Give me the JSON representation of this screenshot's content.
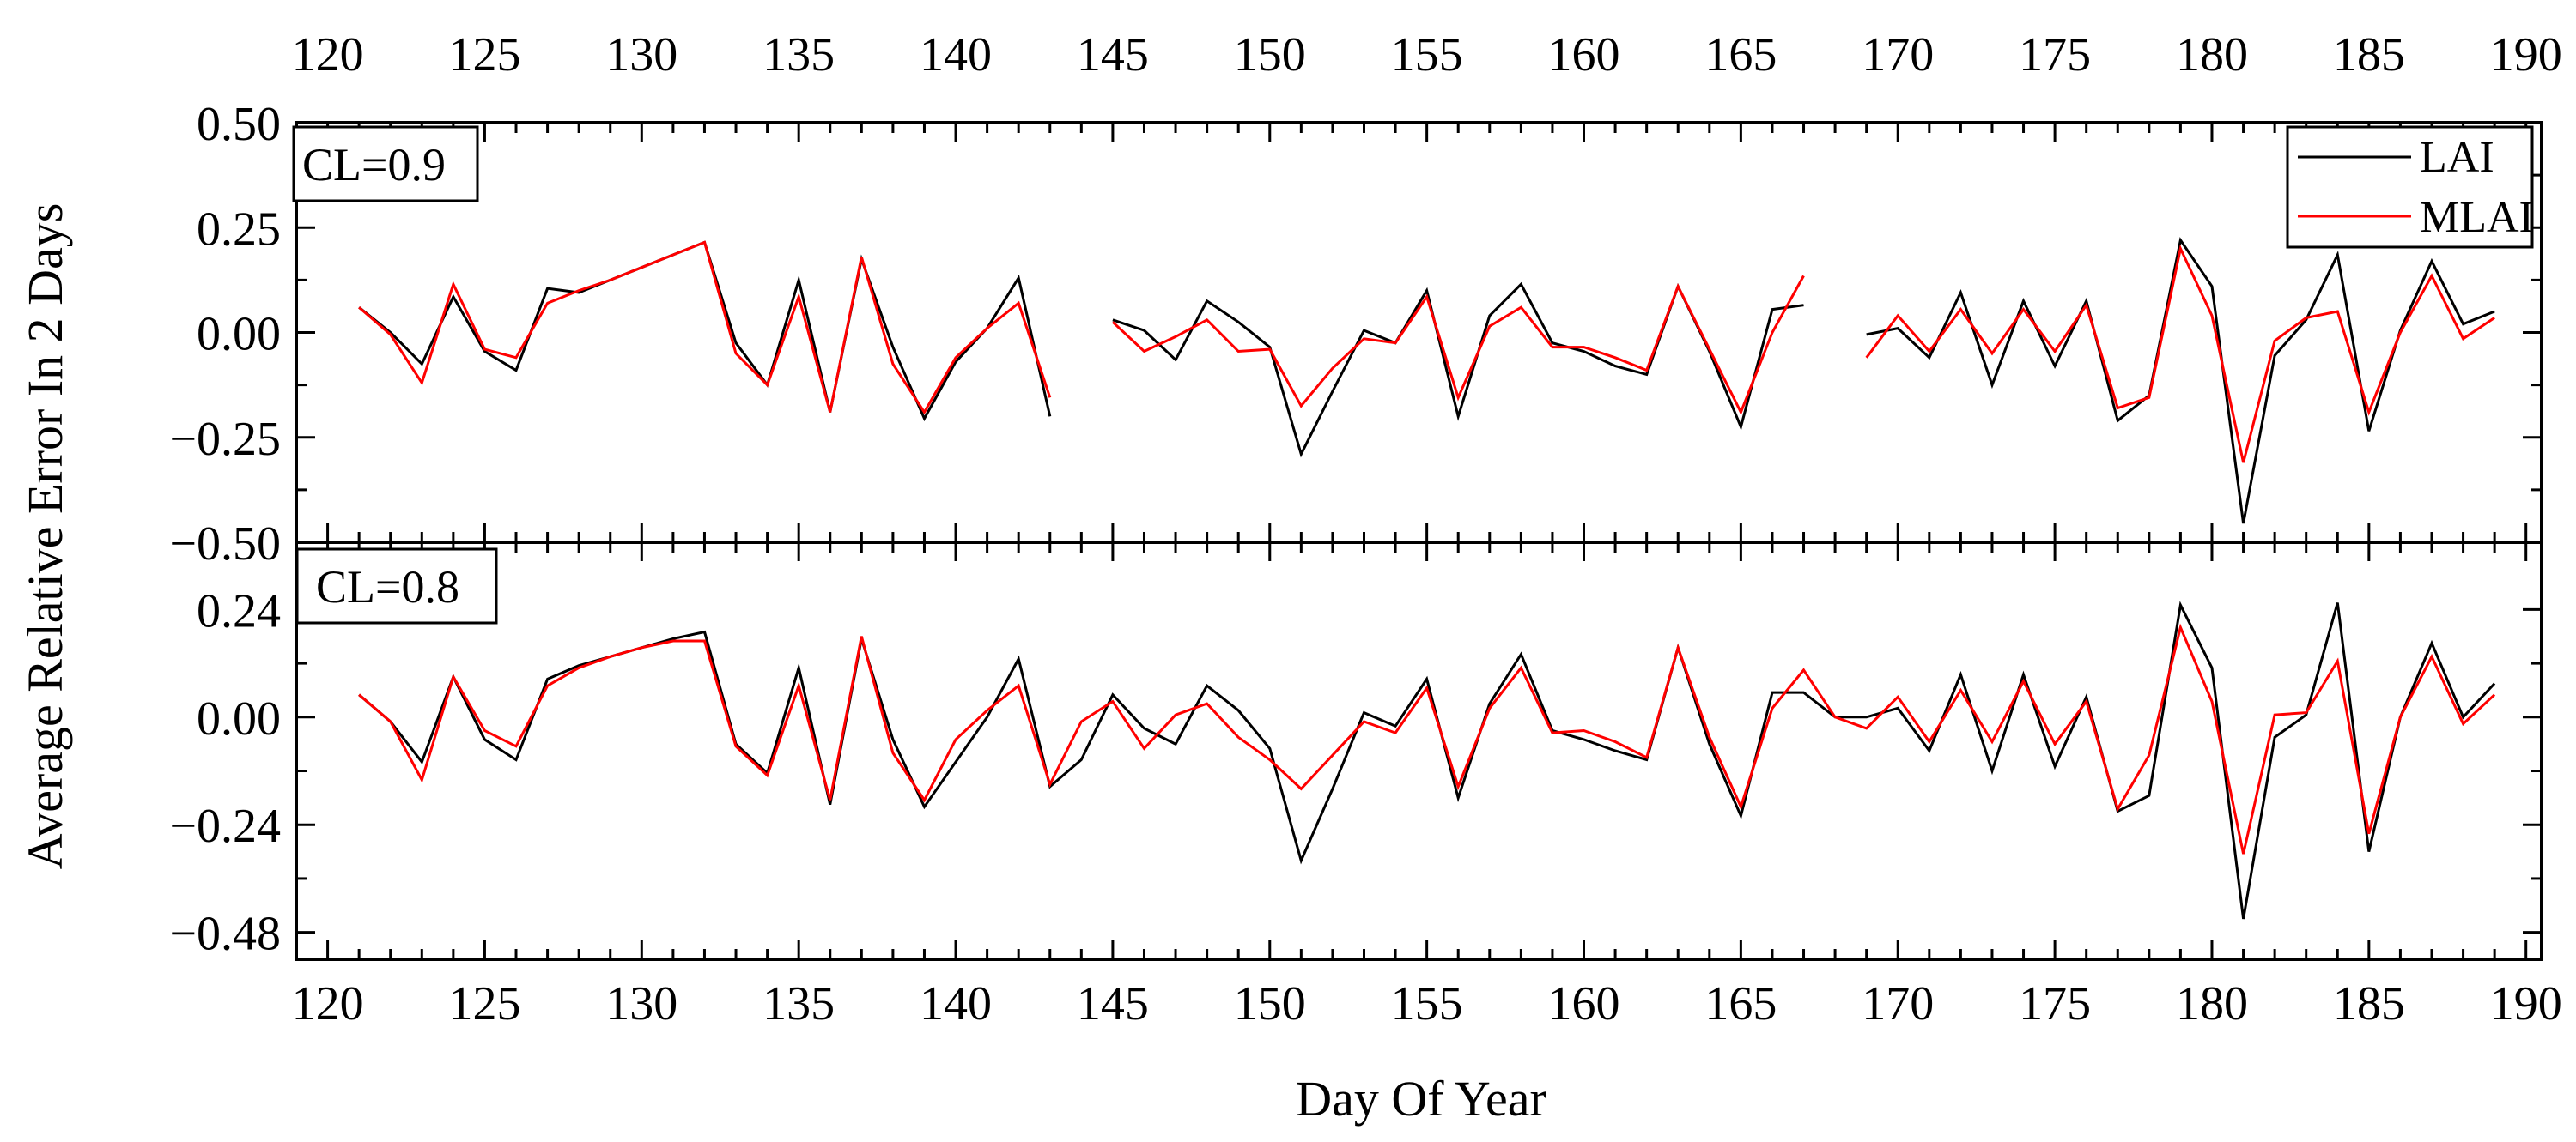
{
  "colors": {
    "LAI": "#000000",
    "MLAI": "#ff0000",
    "frame": "#000000",
    "background": "#ffffff"
  },
  "chart_data": {
    "type": "line",
    "xlabel": "Day Of Year",
    "ylabel": "Average Relative Error In 2 Days",
    "xlim": [
      119,
      190.5
    ],
    "xticks": [
      120,
      125,
      130,
      135,
      140,
      145,
      150,
      155,
      160,
      165,
      170,
      175,
      180,
      185,
      190
    ],
    "legend": {
      "position": "top-right",
      "panel": 0,
      "entries": [
        "LAI",
        "MLAI"
      ]
    },
    "grid": false,
    "panels": [
      {
        "label": "CL=0.9",
        "ylim": [
          -0.5,
          0.5
        ],
        "yticks": [
          0.5,
          0.25,
          0.0,
          -0.25,
          -0.5
        ],
        "ytick_labels": [
          "0.50",
          "0.25",
          "0.00",
          "−0.25",
          "−0.50"
        ],
        "series": [
          {
            "name": "LAI",
            "segments": [
              {
                "x": [
                  121,
                  122,
                  123,
                  124,
                  125,
                  126,
                  127,
                  128,
                  129,
                  130,
                  131,
                  132,
                  133,
                  134,
                  135,
                  136,
                  137,
                  138,
                  139,
                  140,
                  141,
                  142,
                  143
                ],
                "y": [
                  0.06,
                  0.0,
                  -0.075,
                  0.085,
                  -0.045,
                  -0.09,
                  0.105,
                  0.095,
                  0.125,
                  0.155,
                  0.185,
                  0.215,
                  -0.025,
                  -0.125,
                  0.125,
                  -0.19,
                  0.175,
                  -0.035,
                  -0.205,
                  -0.07,
                  0.01,
                  0.13,
                  -0.2
                ]
              },
              {
                "x": [
                  145,
                  146,
                  147,
                  148,
                  149,
                  150,
                  151,
                  152,
                  153,
                  154,
                  155,
                  156,
                  157,
                  158,
                  159,
                  160,
                  161,
                  162,
                  163,
                  164,
                  165,
                  166,
                  167
                ],
                "y": [
                  0.03,
                  0.005,
                  -0.065,
                  0.075,
                  0.025,
                  -0.035,
                  -0.29,
                  -0.14,
                  0.005,
                  -0.025,
                  0.1,
                  -0.2,
                  0.04,
                  0.115,
                  -0.025,
                  -0.045,
                  -0.08,
                  -0.1,
                  0.11,
                  -0.045,
                  -0.225,
                  0.055,
                  0.065
                ]
              },
              {
                "x": [
                  169,
                  170,
                  171,
                  172,
                  173,
                  174,
                  175,
                  176,
                  177,
                  178,
                  179,
                  180,
                  181,
                  182,
                  183,
                  184,
                  185,
                  186,
                  187,
                  188,
                  189
                ],
                "y": [
                  -0.005,
                  0.01,
                  -0.06,
                  0.095,
                  -0.125,
                  0.075,
                  -0.08,
                  0.075,
                  -0.21,
                  -0.15,
                  0.22,
                  0.11,
                  -0.455,
                  -0.055,
                  0.03,
                  0.185,
                  -0.235,
                  0.005,
                  0.17,
                  0.02,
                  0.05
                ]
              }
            ]
          },
          {
            "name": "MLAI",
            "segments": [
              {
                "x": [
                  121,
                  122,
                  123,
                  124,
                  125,
                  126,
                  127,
                  128,
                  129,
                  130,
                  131,
                  132,
                  133,
                  134,
                  135,
                  136,
                  137,
                  138,
                  139,
                  140,
                  141,
                  142,
                  143
                ],
                "y": [
                  0.06,
                  -0.005,
                  -0.12,
                  0.115,
                  -0.04,
                  -0.06,
                  0.07,
                  0.1,
                  0.125,
                  0.155,
                  0.185,
                  0.215,
                  -0.05,
                  -0.125,
                  0.085,
                  -0.19,
                  0.18,
                  -0.075,
                  -0.19,
                  -0.06,
                  0.01,
                  0.07,
                  -0.155
                ]
              },
              {
                "x": [
                  145,
                  146,
                  147,
                  148,
                  149,
                  150,
                  151,
                  152,
                  153,
                  154,
                  155,
                  156,
                  157,
                  158,
                  159,
                  160,
                  161,
                  162,
                  163,
                  164,
                  165,
                  166,
                  167
                ],
                "y": [
                  0.025,
                  -0.045,
                  -0.01,
                  0.03,
                  -0.045,
                  -0.04,
                  -0.175,
                  -0.085,
                  -0.015,
                  -0.025,
                  0.085,
                  -0.155,
                  0.015,
                  0.06,
                  -0.035,
                  -0.035,
                  -0.06,
                  -0.09,
                  0.11,
                  -0.04,
                  -0.19,
                  0.0,
                  0.135
                ]
              },
              {
                "x": [
                  169,
                  170,
                  171,
                  172,
                  173,
                  174,
                  175,
                  176,
                  177,
                  178,
                  179,
                  180,
                  181,
                  182,
                  183,
                  184,
                  185,
                  186,
                  187,
                  188,
                  189
                ],
                "y": [
                  -0.06,
                  0.04,
                  -0.045,
                  0.055,
                  -0.05,
                  0.055,
                  -0.045,
                  0.065,
                  -0.18,
                  -0.155,
                  0.2,
                  0.04,
                  -0.31,
                  -0.02,
                  0.035,
                  0.05,
                  -0.19,
                  0.0,
                  0.135,
                  -0.015,
                  0.035
                ]
              }
            ]
          }
        ]
      },
      {
        "label": "CL=0.8",
        "ylim": [
          -0.54,
          0.39
        ],
        "yticks": [
          0.24,
          0.0,
          -0.24,
          -0.48
        ],
        "ytick_labels": [
          "0.24",
          "0.00",
          "−0.24",
          "−0.48"
        ],
        "series": [
          {
            "name": "LAI",
            "segments": [
              {
                "x": [
                  121,
                  122,
                  123,
                  124,
                  125,
                  126,
                  127,
                  128,
                  129,
                  130,
                  131,
                  132,
                  133,
                  134,
                  135,
                  136,
                  137,
                  138,
                  139,
                  140,
                  141,
                  142,
                  143,
                  144,
                  145,
                  146,
                  147,
                  148,
                  149,
                  150,
                  151,
                  152,
                  153,
                  154,
                  155,
                  156,
                  157,
                  158,
                  159,
                  160,
                  161,
                  162,
                  163,
                  164,
                  165,
                  166,
                  167,
                  168,
                  169,
                  170,
                  171,
                  172,
                  173,
                  174,
                  175,
                  176,
                  177,
                  178,
                  179,
                  180,
                  181,
                  182,
                  183,
                  184,
                  185,
                  186,
                  187,
                  188,
                  189
                ],
                "y": [
                  0.05,
                  -0.01,
                  -0.1,
                  0.09,
                  -0.05,
                  -0.095,
                  0.085,
                  0.115,
                  0.135,
                  0.155,
                  0.175,
                  0.19,
                  -0.06,
                  -0.125,
                  0.11,
                  -0.195,
                  0.175,
                  -0.05,
                  -0.2,
                  -0.1,
                  0.0,
                  0.13,
                  -0.155,
                  -0.095,
                  0.05,
                  -0.025,
                  -0.06,
                  0.07,
                  0.015,
                  -0.07,
                  -0.32,
                  -0.16,
                  0.01,
                  -0.02,
                  0.085,
                  -0.18,
                  0.03,
                  0.14,
                  -0.03,
                  -0.05,
                  -0.075,
                  -0.095,
                  0.155,
                  -0.06,
                  -0.22,
                  0.055,
                  0.055,
                  0.0,
                  0.0,
                  0.02,
                  -0.075,
                  0.095,
                  -0.12,
                  0.095,
                  -0.11,
                  0.045,
                  -0.21,
                  -0.175,
                  0.25,
                  0.11,
                  -0.45,
                  -0.045,
                  0.005,
                  0.255,
                  -0.3,
                  0.0,
                  0.165,
                  0.0,
                  0.075
                ]
              }
            ]
          },
          {
            "name": "MLAI",
            "segments": [
              {
                "x": [
                  121,
                  122,
                  123,
                  124,
                  125,
                  126,
                  127,
                  128,
                  129,
                  130,
                  131,
                  132,
                  133,
                  134,
                  135,
                  136,
                  137,
                  138,
                  139,
                  140,
                  141,
                  142,
                  143,
                  144,
                  145,
                  146,
                  147,
                  148,
                  149,
                  150,
                  151,
                  152,
                  153,
                  154,
                  155,
                  156,
                  157,
                  158,
                  159,
                  160,
                  161,
                  162,
                  163,
                  164,
                  165,
                  166,
                  167,
                  168,
                  169,
                  170,
                  171,
                  172,
                  173,
                  174,
                  175,
                  176,
                  177,
                  178,
                  179,
                  180,
                  181,
                  182,
                  183,
                  184,
                  185,
                  186,
                  187,
                  188,
                  189
                ],
                "y": [
                  0.05,
                  -0.01,
                  -0.14,
                  0.09,
                  -0.03,
                  -0.065,
                  0.07,
                  0.11,
                  0.135,
                  0.155,
                  0.17,
                  0.17,
                  -0.065,
                  -0.13,
                  0.07,
                  -0.185,
                  0.18,
                  -0.08,
                  -0.185,
                  -0.05,
                  0.015,
                  0.07,
                  -0.15,
                  -0.01,
                  0.035,
                  -0.07,
                  0.005,
                  0.03,
                  -0.045,
                  -0.095,
                  -0.16,
                  -0.085,
                  -0.01,
                  -0.035,
                  0.065,
                  -0.155,
                  0.02,
                  0.11,
                  -0.035,
                  -0.03,
                  -0.055,
                  -0.09,
                  0.155,
                  -0.045,
                  -0.2,
                  0.02,
                  0.105,
                  0.0,
                  -0.025,
                  0.045,
                  -0.055,
                  0.06,
                  -0.055,
                  0.08,
                  -0.06,
                  0.035,
                  -0.205,
                  -0.085,
                  0.2,
                  0.035,
                  -0.305,
                  0.005,
                  0.01,
                  0.125,
                  -0.26,
                  0.0,
                  0.135,
                  -0.015,
                  0.05
                ]
              }
            ]
          }
        ]
      }
    ]
  }
}
